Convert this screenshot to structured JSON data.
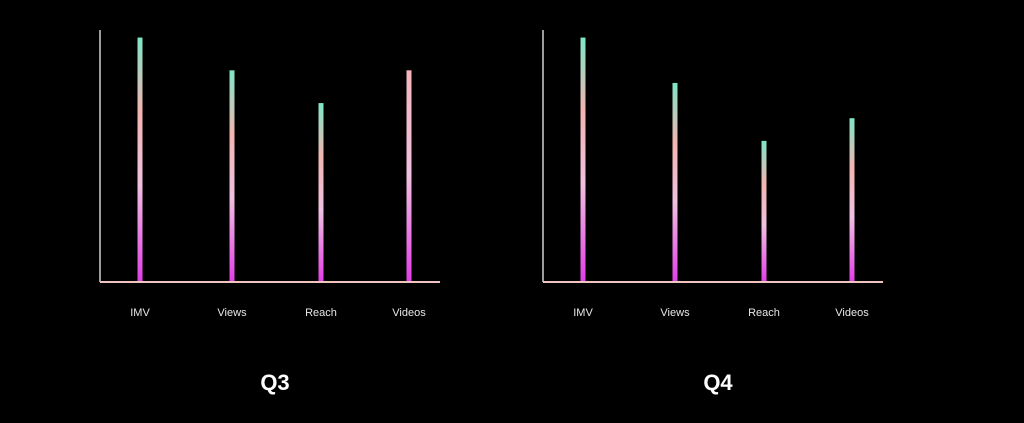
{
  "chart_data": [
    {
      "type": "bar",
      "title": "Q3",
      "categories": [
        "IMV",
        "Views",
        "Reach",
        "Videos"
      ],
      "values": [
        97,
        84,
        71,
        84
      ],
      "ylim": [
        0,
        100
      ]
    },
    {
      "type": "bar",
      "title": "Q4",
      "categories": [
        "IMV",
        "Views",
        "Reach",
        "Videos"
      ],
      "values": [
        97,
        79,
        56,
        65
      ],
      "ylim": [
        0,
        100
      ]
    }
  ]
}
